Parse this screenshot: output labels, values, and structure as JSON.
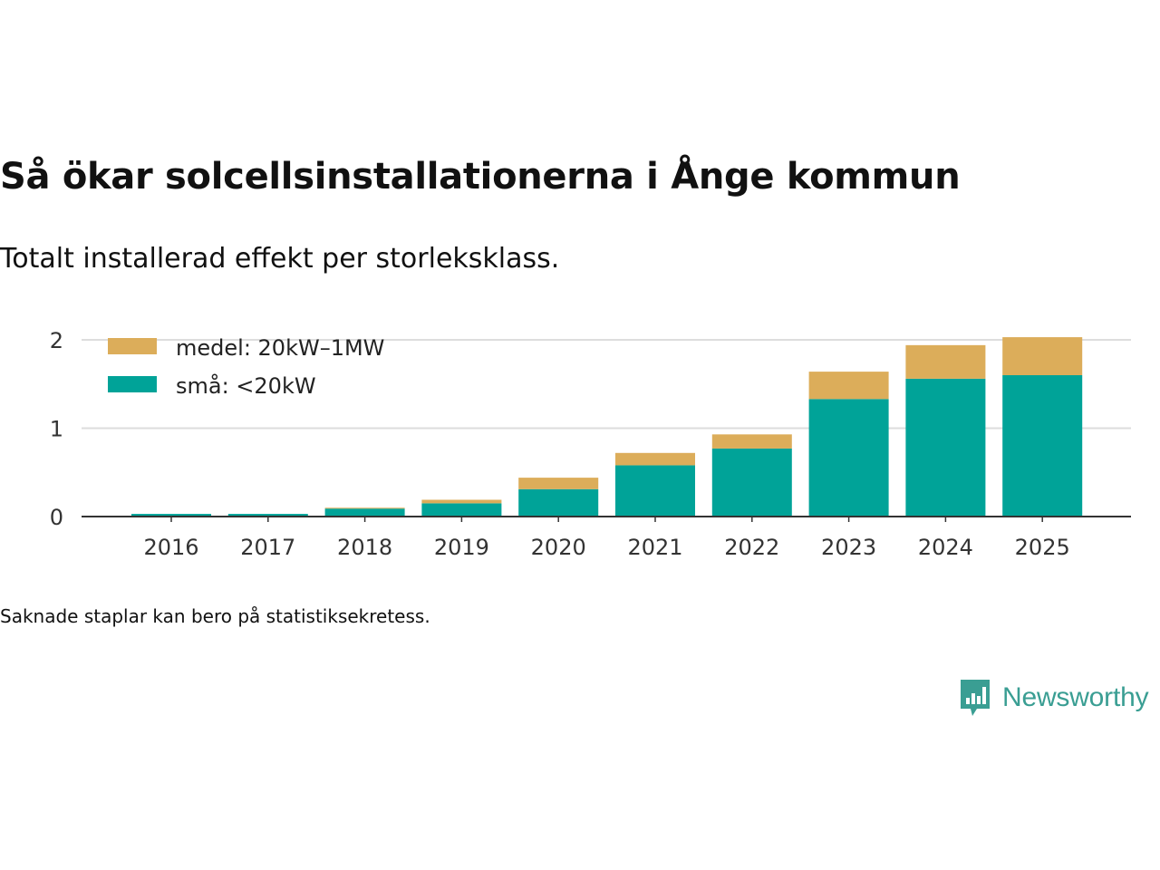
{
  "title": "Så ökar solcellsinstallationerna i Ånge kommun",
  "subtitle": "Totalt installerad effekt per storleksklass.",
  "footnote": "Saknade staplar kan bero på statistiksekretess.",
  "brand": {
    "name": "Newsworthy",
    "icon": "newsworthy-logo-icon",
    "color": "#3a9e93"
  },
  "colors": {
    "small": "#00a398",
    "medium": "#dcad5a",
    "grid": "#dddddd",
    "axis": "#333333",
    "text": "#333333"
  },
  "chart_data": {
    "type": "bar",
    "stacked": true,
    "title": "Så ökar solcellsinstallationerna i Ånge kommun",
    "xlabel": "",
    "ylabel": "",
    "categories": [
      "2016",
      "2017",
      "2018",
      "2019",
      "2020",
      "2021",
      "2022",
      "2023",
      "2024",
      "2025"
    ],
    "series": [
      {
        "name": "små: <20kW",
        "color": "#00a398",
        "values": [
          0.03,
          0.03,
          0.09,
          0.15,
          0.31,
          0.58,
          0.77,
          1.33,
          1.56,
          1.6
        ]
      },
      {
        "name": "medel: 20kW–1MW",
        "color": "#dcad5a",
        "values": [
          0.0,
          0.0,
          0.01,
          0.04,
          0.13,
          0.14,
          0.16,
          0.31,
          0.38,
          0.43
        ]
      }
    ],
    "legend": [
      {
        "name": "medel: 20kW–1MW",
        "color": "#dcad5a"
      },
      {
        "name": "små: <20kW",
        "color": "#00a398"
      }
    ],
    "legend_position": "top-left",
    "ylim": [
      0,
      2.1
    ],
    "yticks": [
      0,
      1,
      2
    ],
    "grid": true
  }
}
